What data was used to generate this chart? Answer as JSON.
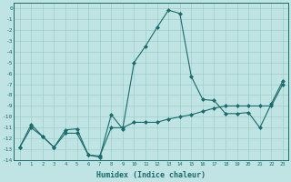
{
  "xlabel": "Humidex (Indice chaleur)",
  "x_values": [
    0,
    1,
    2,
    3,
    4,
    5,
    6,
    7,
    8,
    9,
    10,
    11,
    12,
    13,
    14,
    15,
    16,
    17,
    18,
    19,
    20,
    21,
    22,
    23
  ],
  "line1_y": [
    -12.8,
    -10.7,
    -11.8,
    -12.8,
    -11.2,
    -11.1,
    -13.5,
    -13.7,
    -9.8,
    -11.1,
    -5.0,
    -3.5,
    -1.8,
    -0.2,
    -0.5,
    -6.3,
    -8.4,
    -8.5,
    -9.7,
    -9.7,
    -9.6,
    -11.0,
    -8.8,
    -6.7
  ],
  "line2_y": [
    -12.8,
    -11.0,
    -11.8,
    -12.8,
    -11.5,
    -11.5,
    -13.5,
    -13.6,
    -11.0,
    -11.0,
    -10.5,
    -10.5,
    -10.5,
    -10.2,
    -10.0,
    -9.8,
    -9.5,
    -9.2,
    -9.0,
    -9.0,
    -9.0,
    -9.0,
    -9.0,
    -7.0
  ],
  "line_color": "#1a6b6b",
  "bg_color": "#c0e4e4",
  "grid_color": "#9ecece",
  "xlim": [
    -0.5,
    23.5
  ],
  "ylim": [
    -14,
    0.5
  ],
  "yticks": [
    0,
    -1,
    -2,
    -3,
    -4,
    -5,
    -6,
    -7,
    -8,
    -9,
    -10,
    -11,
    -12,
    -13,
    -14
  ],
  "marker": "D",
  "markersize": 2.0,
  "linewidth": 0.8
}
